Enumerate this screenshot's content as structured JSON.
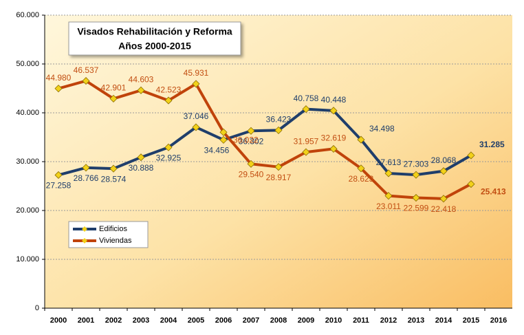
{
  "chart_data": {
    "type": "line",
    "title": "Visados Rehabilitación y Reforma",
    "subtitle": "Años 2000-2015",
    "categories": [
      "2000",
      "2001",
      "2002",
      "2003",
      "2004",
      "2005",
      "2006",
      "2007",
      "2008",
      "2009",
      "2010",
      "2011",
      "2012",
      "2013",
      "2014",
      "2015",
      "2016"
    ],
    "series": [
      {
        "name": "Edificios",
        "color": "#1f3e6b",
        "label_color": "#1f3e6b",
        "values": [
          27258,
          28766,
          28574,
          30888,
          32925,
          37046,
          34456,
          36302,
          36423,
          40758,
          40448,
          34498,
          27613,
          27303,
          28068,
          31285,
          null
        ],
        "value_labels": [
          "27.258",
          "28.766",
          "28.574",
          "30.888",
          "32.925",
          "37.046",
          "34.456",
          "36.302",
          "36.423",
          "40.758",
          "40.448",
          "34.498",
          "27.613",
          "27.303",
          "28.068",
          "31.285",
          null
        ]
      },
      {
        "name": "Viviendas",
        "color": "#c0430a",
        "label_color": "#c24e12",
        "values": [
          44980,
          46537,
          42901,
          44603,
          42523,
          45931,
          36022,
          29540,
          28917,
          31957,
          32619,
          28623,
          23011,
          22599,
          22418,
          25413,
          null
        ],
        "value_labels": [
          "44.980",
          "46.537",
          "42.901",
          "44.603",
          "42.523",
          "45.931",
          "36.022",
          "29.540",
          "28.917",
          "31.957",
          "32.619",
          "28.623",
          "23.011",
          "22.599",
          "22.418",
          "25.413",
          null
        ]
      }
    ],
    "marker_color": "#f2d11a",
    "ylim": [
      0,
      60000
    ],
    "yticks": [
      0,
      {
        "value": 10000,
        "label": "10.000"
      },
      {
        "value": 20000,
        "label": "20.000"
      },
      {
        "value": 30000,
        "label": "30.000"
      },
      {
        "value": 40000,
        "label": "40.000"
      },
      {
        "value": 50000,
        "label": "50.000"
      },
      {
        "value": 60000,
        "label": "60.000"
      }
    ],
    "grid": true
  }
}
